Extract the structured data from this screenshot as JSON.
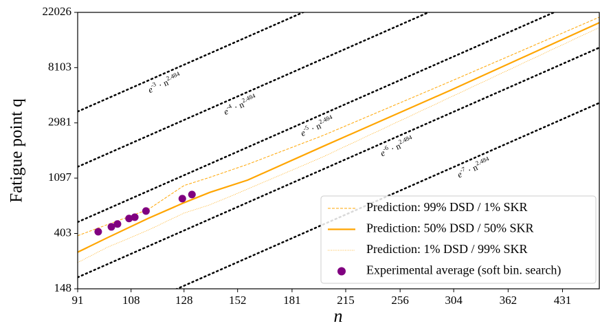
{
  "chart_data": {
    "type": "line",
    "x_label": "n",
    "y_label": "Fatigue point q",
    "x_scale": "log",
    "y_scale": "log",
    "xlim": [
      91,
      485
    ],
    "ylim": [
      148,
      22026
    ],
    "xticks": [
      91,
      108,
      128,
      152,
      181,
      215,
      256,
      304,
      362,
      431
    ],
    "yticks": [
      148,
      403,
      1097,
      2981,
      8103,
      22026
    ],
    "legend_loc": "lower right",
    "reference_lines": [
      {
        "prefix": "e",
        "log_coef": -3,
        "infix": " · n",
        "exponent": 2.484,
        "color": "#000000"
      },
      {
        "prefix": "e",
        "log_coef": -4,
        "infix": " · n",
        "exponent": 2.484,
        "color": "#000000"
      },
      {
        "prefix": "e",
        "log_coef": -5,
        "infix": " · n",
        "exponent": 2.484,
        "color": "#000000"
      },
      {
        "prefix": "e",
        "log_coef": -6,
        "infix": " · n",
        "exponent": 2.484,
        "color": "#000000"
      },
      {
        "prefix": "e",
        "log_coef": -7,
        "infix": " · n",
        "exponent": 2.484,
        "color": "#000000"
      }
    ],
    "x": [
      91,
      100,
      114,
      128,
      139,
      157,
      200,
      300,
      485
    ],
    "series": [
      {
        "name": "Prediction: 99% DSD / 1% SKR",
        "color": "#ffa500",
        "style": "dashed",
        "values": [
          387,
          472,
          620,
          959,
          1112,
          1408,
          2375,
          6270,
          20190
        ]
      },
      {
        "name": "Prediction: 50% DSD / 50% SKR",
        "color": "#ffa500",
        "style": "solid",
        "values": [
          287,
          372,
          528,
          703,
          847,
          1059,
          1950,
          5340,
          18270
        ]
      },
      {
        "name": "Prediction: 1% DSD / 99% SKR",
        "color": "#ffa500",
        "style": "dotted",
        "values": [
          238,
          313,
          427,
          583,
          676,
          900,
          1615,
          4710,
          16760
        ]
      }
    ],
    "scatter": {
      "name": "Experimental average (soft bin. search)",
      "color": "#800080",
      "x": [
        97.2,
        101.4,
        103.4,
        107.3,
        109.3,
        113.3,
        127.3,
        131.3
      ],
      "values": [
        416,
        454,
        478,
        528,
        541,
        605,
        757,
        815
      ]
    }
  }
}
